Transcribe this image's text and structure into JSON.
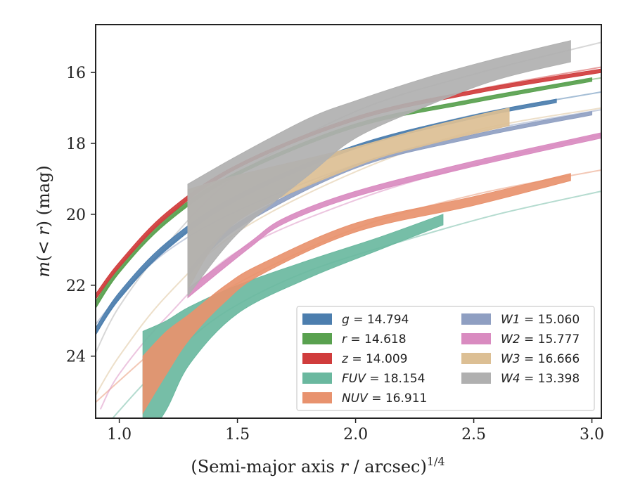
{
  "chart_data": {
    "type": "line",
    "xlabel": "(Semi-major axis r / arcsec)",
    "xlabel_italic": "r",
    "xlabel_exponent": "1/4",
    "ylabel": "m(< r) (mag)",
    "xlim": [
      0.9,
      3.04
    ],
    "ylim": [
      25.75,
      14.65
    ],
    "y_inverted": true,
    "xticks": [
      "1.0",
      "1.5",
      "2.0",
      "2.5",
      "3.0"
    ],
    "xtick_values": [
      1.0,
      1.5,
      2.0,
      2.5,
      3.0
    ],
    "yticks": [
      "16",
      "18",
      "20",
      "22",
      "24"
    ],
    "ytick_values": [
      16,
      18,
      20,
      22,
      24
    ],
    "grid": false,
    "legend_position": "lower-right",
    "series": [
      {
        "name": "g = 14.794",
        "band": "g",
        "total": "14.794",
        "color": "#4c7eae",
        "model_x": [
          0.9,
          1.0,
          1.2,
          1.5,
          2.0,
          2.5,
          3.04
        ],
        "model_y": [
          23.35,
          22.35,
          20.95,
          19.55,
          18.1,
          17.2,
          16.55
        ],
        "band_x": [
          0.9,
          1.0,
          1.2,
          1.5,
          2.0,
          2.5,
          2.85
        ],
        "band_lo": [
          23.2,
          22.2,
          20.8,
          19.45,
          18.05,
          17.2,
          16.75
        ],
        "band_hi": [
          23.4,
          22.4,
          21.0,
          19.6,
          18.15,
          17.3,
          16.85
        ]
      },
      {
        "name": "r = 14.618",
        "band": "r",
        "total": "14.618",
        "color": "#59a14f",
        "model_x": [
          0.9,
          1.0,
          1.2,
          1.5,
          2.0,
          2.5,
          3.04
        ],
        "model_y": [
          22.6,
          21.6,
          20.2,
          18.85,
          17.5,
          16.75,
          16.15
        ],
        "band_x": [
          0.9,
          1.0,
          1.2,
          1.5,
          2.0,
          2.5,
          3.0
        ],
        "band_lo": [
          22.45,
          21.5,
          20.1,
          18.8,
          17.45,
          16.75,
          16.15
        ],
        "band_hi": [
          22.65,
          21.65,
          20.25,
          18.9,
          17.55,
          16.85,
          16.25
        ]
      },
      {
        "name": "z = 14.009",
        "band": "z",
        "total": "14.009",
        "color": "#d03c3c",
        "model_x": [
          0.9,
          1.0,
          1.2,
          1.5,
          2.0,
          2.5,
          3.04
        ],
        "model_y": [
          22.35,
          21.45,
          20.05,
          18.65,
          17.3,
          16.5,
          15.85
        ],
        "band_x": [
          0.9,
          1.0,
          1.2,
          1.5,
          2.0,
          2.5,
          3.04
        ],
        "band_lo": [
          22.25,
          21.35,
          19.95,
          18.6,
          17.25,
          16.5,
          15.9
        ],
        "band_hi": [
          22.4,
          21.5,
          20.1,
          18.7,
          17.35,
          16.6,
          16.0
        ]
      },
      {
        "name": "FUV = 18.154",
        "band": "FUV",
        "total": "18.154",
        "color": "#6ab89f",
        "model_x": [
          0.9,
          1.1,
          1.3,
          1.5,
          1.8,
          2.2,
          2.6,
          3.04
        ],
        "model_y": [
          26.3,
          24.8,
          23.5,
          22.55,
          21.6,
          20.75,
          20.0,
          19.35
        ],
        "band_x": [
          1.1,
          1.2,
          1.3,
          1.5,
          1.8,
          2.1,
          2.37
        ],
        "band_lo": [
          23.3,
          23.0,
          22.6,
          22.0,
          21.3,
          20.65,
          20.0
        ],
        "band_hi": [
          26.5,
          25.5,
          24.2,
          22.8,
          21.8,
          21.0,
          20.3
        ]
      },
      {
        "name": "NUV = 16.911",
        "band": "NUV",
        "total": "16.911",
        "color": "#e8926e",
        "model_x": [
          0.9,
          1.1,
          1.3,
          1.5,
          2.0,
          2.5,
          3.04
        ],
        "model_y": [
          25.3,
          24.1,
          22.95,
          21.95,
          20.4,
          19.45,
          18.75
        ],
        "band_x": [
          1.1,
          1.2,
          1.3,
          1.45,
          1.6,
          2.0,
          2.5,
          2.91
        ],
        "band_lo": [
          24.0,
          23.3,
          22.8,
          22.0,
          21.4,
          20.25,
          19.5,
          18.85
        ],
        "band_hi": [
          25.6,
          24.5,
          23.5,
          22.45,
          21.7,
          20.5,
          19.75,
          19.05
        ]
      },
      {
        "name": "W1 = 15.060",
        "band": "W1",
        "total": "15.060",
        "color": "#8f9fc2",
        "model_x": [
          0.9,
          1.0,
          1.2,
          1.5,
          2.0,
          2.5,
          3.04
        ],
        "model_y": [
          23.1,
          22.3,
          21.05,
          19.9,
          18.6,
          17.7,
          17.05
        ],
        "band_x": [
          1.29,
          1.5,
          2.0,
          2.5,
          3.0
        ],
        "band_lo": [
          21.6,
          20.25,
          18.6,
          17.75,
          17.1
        ],
        "band_hi": [
          21.75,
          20.4,
          18.7,
          17.85,
          17.2
        ]
      },
      {
        "name": "W2 = 15.777",
        "band": "W2",
        "total": "15.777",
        "color": "#d98bc0",
        "model_x": [
          0.92,
          1.0,
          1.2,
          1.5,
          2.0,
          2.5,
          3.04
        ],
        "model_y": [
          25.5,
          24.5,
          22.9,
          21.05,
          19.6,
          18.6,
          17.75
        ],
        "band_x": [
          1.29,
          1.55,
          1.7,
          2.0,
          2.5,
          3.04
        ],
        "band_lo": [
          22.1,
          20.8,
          20.1,
          19.35,
          18.5,
          17.7
        ],
        "band_hi": [
          22.35,
          20.95,
          20.25,
          19.5,
          18.65,
          17.85
        ]
      },
      {
        "name": "W3 = 16.666",
        "band": "W3",
        "total": "16.666",
        "color": "#dcbf94",
        "model_x": [
          0.9,
          1.0,
          1.2,
          1.5,
          2.0,
          2.5,
          3.04
        ],
        "model_y": [
          25.1,
          24.0,
          22.3,
          20.5,
          18.8,
          17.65,
          17.0
        ],
        "band_x": [
          1.29,
          1.5,
          2.0,
          2.3,
          2.65
        ],
        "band_lo": [
          19.3,
          18.9,
          18.1,
          17.55,
          17.0
        ],
        "band_hi": [
          22.1,
          20.2,
          18.65,
          18.05,
          17.5
        ]
      },
      {
        "name": "W4 = 13.398",
        "band": "W4",
        "total": "13.398",
        "color": "#b0b0b0",
        "model_x": [
          0.9,
          1.0,
          1.2,
          1.5,
          2.0,
          2.5,
          3.04
        ],
        "model_y": [
          23.9,
          22.6,
          20.85,
          18.9,
          17.1,
          16.05,
          15.15
        ],
        "band_x": [
          1.29,
          1.5,
          1.8,
          2.0,
          2.3,
          2.6,
          2.91
        ],
        "band_lo": [
          19.15,
          18.35,
          17.3,
          16.8,
          16.15,
          15.6,
          15.1
        ],
        "band_hi": [
          22.3,
          20.55,
          18.9,
          17.85,
          16.95,
          16.2,
          15.7
        ]
      }
    ]
  }
}
